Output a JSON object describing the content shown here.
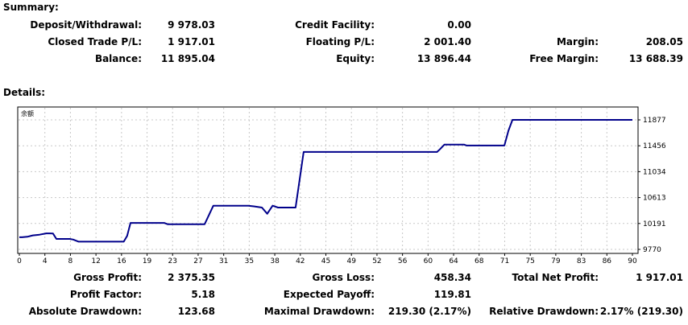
{
  "summary": {
    "title": "Summary:",
    "deposit_withdrawal_label": "Deposit/Withdrawal:",
    "deposit_withdrawal_value": "9 978.03",
    "credit_facility_label": "Credit Facility:",
    "credit_facility_value": "0.00",
    "closed_trade_pl_label": "Closed Trade P/L:",
    "closed_trade_pl_value": "1 917.01",
    "floating_pl_label": "Floating P/L:",
    "floating_pl_value": "2 001.40",
    "margin_label": "Margin:",
    "margin_value": "208.05",
    "balance_label": "Balance:",
    "balance_value": "11 895.04",
    "equity_label": "Equity:",
    "equity_value": "13 896.44",
    "free_margin_label": "Free Margin:",
    "free_margin_value": "13 688.39"
  },
  "details": {
    "title": "Details:",
    "gross_profit_label": "Gross Profit:",
    "gross_profit_value": "2 375.35",
    "gross_loss_label": "Gross Loss:",
    "gross_loss_value": "458.34",
    "total_net_profit_label": "Total Net Profit:",
    "total_net_profit_value": "1 917.01",
    "profit_factor_label": "Profit Factor:",
    "profit_factor_value": "5.18",
    "expected_payoff_label": "Expected Payoff:",
    "expected_payoff_value": "119.81",
    "absolute_drawdown_label": "Absolute Drawdown:",
    "absolute_drawdown_value": "123.68",
    "maximal_drawdown_label": "Maximal Drawdown:",
    "maximal_drawdown_value": "219.30 (2.17%)",
    "relative_drawdown_label": "Relative Drawdown:",
    "relative_drawdown_value": "2.17% (219.30)"
  },
  "chart_data": {
    "type": "line",
    "corner_label": "余额",
    "x_ticks": [
      "0",
      "4",
      "8",
      "12",
      "16",
      "19",
      "23",
      "27",
      "31",
      "35",
      "38",
      "42",
      "45",
      "49",
      "52",
      "56",
      "60",
      "64",
      "68",
      "71",
      "75",
      "79",
      "83",
      "86",
      "90"
    ],
    "y_ticks": [
      "11877",
      "11456",
      "11034",
      "10613",
      "10191",
      "9770"
    ],
    "xlim": [
      0,
      91
    ],
    "ylim": [
      9770,
      11877
    ],
    "grid": true,
    "line_color": "#00008b",
    "series": [
      {
        "x": [
          0,
          0.4,
          1.2,
          2,
          3,
          4,
          4.5,
          5,
          5.5,
          7.5,
          8,
          8.8,
          9,
          15.2,
          15.5,
          16,
          16.5,
          17,
          17.5,
          21.5,
          22,
          26.6,
          27.5,
          28.8,
          29.2,
          31,
          34,
          34.8,
          36,
          36.8,
          37.6,
          38.4,
          40,
          41,
          42.2,
          42.7,
          61.5,
          62,
          62.4,
          63.1,
          63.6,
          66,
          66.4,
          71.5,
          72,
          72.6,
          73.2,
          91
        ],
        "y": [
          9968,
          9968,
          9975,
          9998,
          10010,
          10030,
          10030,
          10028,
          9940,
          9940,
          9930,
          9895,
          9895,
          9895,
          9895,
          9990,
          10200,
          10200,
          10200,
          10200,
          10180,
          10180,
          10180,
          10480,
          10480,
          10480,
          10480,
          10470,
          10450,
          10350,
          10480,
          10450,
          10450,
          10450,
          11355,
          11355,
          11355,
          11355,
          11395,
          11475,
          11475,
          11475,
          11460,
          11460,
          11460,
          11700,
          11877,
          11877
        ]
      }
    ]
  }
}
